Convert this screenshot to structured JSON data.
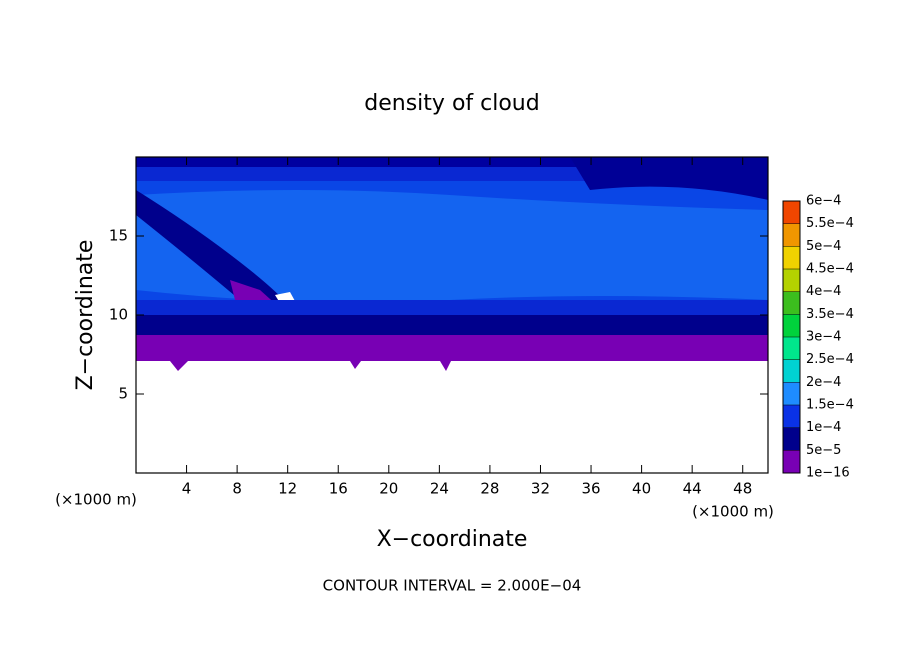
{
  "chart_data": {
    "type": "contour",
    "title": "density of cloud",
    "xlabel": "X−coordinate",
    "ylabel": "Z−coordinate",
    "x_unit_left": "(×1000 m)",
    "x_unit_right": "(×1000 m)",
    "footer": "CONTOUR INTERVAL = 2.000E−04",
    "xlim": [
      0,
      50
    ],
    "ylim": [
      0,
      20
    ],
    "xticks": [
      4,
      8,
      12,
      16,
      20,
      24,
      28,
      32,
      36,
      40,
      44,
      48
    ],
    "yticks": [
      5,
      10,
      15
    ],
    "colorbar": {
      "levels": [
        {
          "value": 1e-16,
          "label": "1e−16"
        },
        {
          "value": 5e-05,
          "label": "5e−5"
        },
        {
          "value": 0.0001,
          "label": "1e−4"
        },
        {
          "value": 0.00015,
          "label": "1.5e−4"
        },
        {
          "value": 0.0002,
          "label": "2e−4"
        },
        {
          "value": 0.00025,
          "label": "2.5e−4"
        },
        {
          "value": 0.0003,
          "label": "3e−4"
        },
        {
          "value": 0.00035,
          "label": "3.5e−4"
        },
        {
          "value": 0.0004,
          "label": "4e−4"
        },
        {
          "value": 0.00045,
          "label": "4.5e−4"
        },
        {
          "value": 0.0005,
          "label": "5e−4"
        },
        {
          "value": 0.00055,
          "label": "5.5e−4"
        },
        {
          "value": 0.0006,
          "label": "6e−4"
        }
      ],
      "colors": [
        "#7800b4",
        "#00008c",
        "#0a32e6",
        "#1e8cff",
        "#00d2d2",
        "#00e68c",
        "#00d23c",
        "#3cbe1e",
        "#b4d200",
        "#f0d200",
        "#f09600",
        "#f04600"
      ]
    }
  }
}
